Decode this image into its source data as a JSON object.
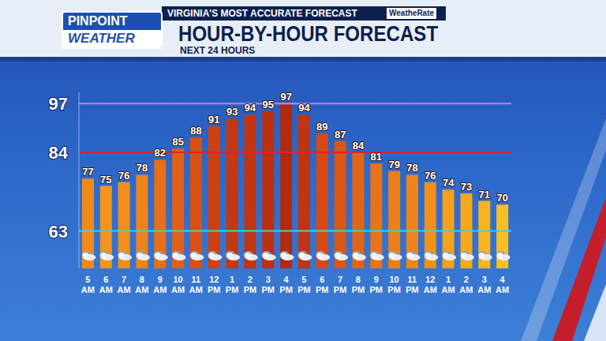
{
  "header": {
    "logo": [
      "PINPOINT",
      "WEATHER"
    ],
    "tagline": "VIRGINIA'S MOST ACCURATE FORECAST",
    "badge": "WeatheRate"
  },
  "chart_data": {
    "type": "bar",
    "title": "HOUR-BY-HOUR FORECAST",
    "subtitle": "NEXT 24 HOURS",
    "categories": [
      "5 AM",
      "6 AM",
      "7 AM",
      "8 AM",
      "9 AM",
      "10 AM",
      "11 AM",
      "12 PM",
      "1 PM",
      "2 PM",
      "3 PM",
      "4 PM",
      "5 PM",
      "6 PM",
      "7 PM",
      "8 PM",
      "9 PM",
      "10 PM",
      "11 PM",
      "12 AM",
      "1 AM",
      "2 AM",
      "3 AM",
      "4 AM"
    ],
    "values": [
      77,
      75,
      76,
      78,
      82,
      85,
      88,
      91,
      93,
      94,
      95,
      97,
      94,
      89,
      87,
      84,
      81,
      79,
      78,
      76,
      74,
      73,
      71,
      70
    ],
    "colors": [
      "#f28a1a",
      "#f5931b",
      "#f28e1a",
      "#ee8419",
      "#e86e17",
      "#e26015",
      "#d85014",
      "#cc4012",
      "#c43811",
      "#c03510",
      "#bb3010",
      "#b02a0d",
      "#c03510",
      "#d54a13",
      "#db5514",
      "#e46416",
      "#ea7317",
      "#ee7f18",
      "#f08419",
      "#f39019",
      "#f6a01c",
      "#f7a81d",
      "#f9b41f",
      "#fbbe22"
    ],
    "ylim": [
      53,
      100
    ],
    "yticks": [
      63,
      84,
      97
    ],
    "grid": true,
    "data_labels": true,
    "tick_labels": true
  }
}
